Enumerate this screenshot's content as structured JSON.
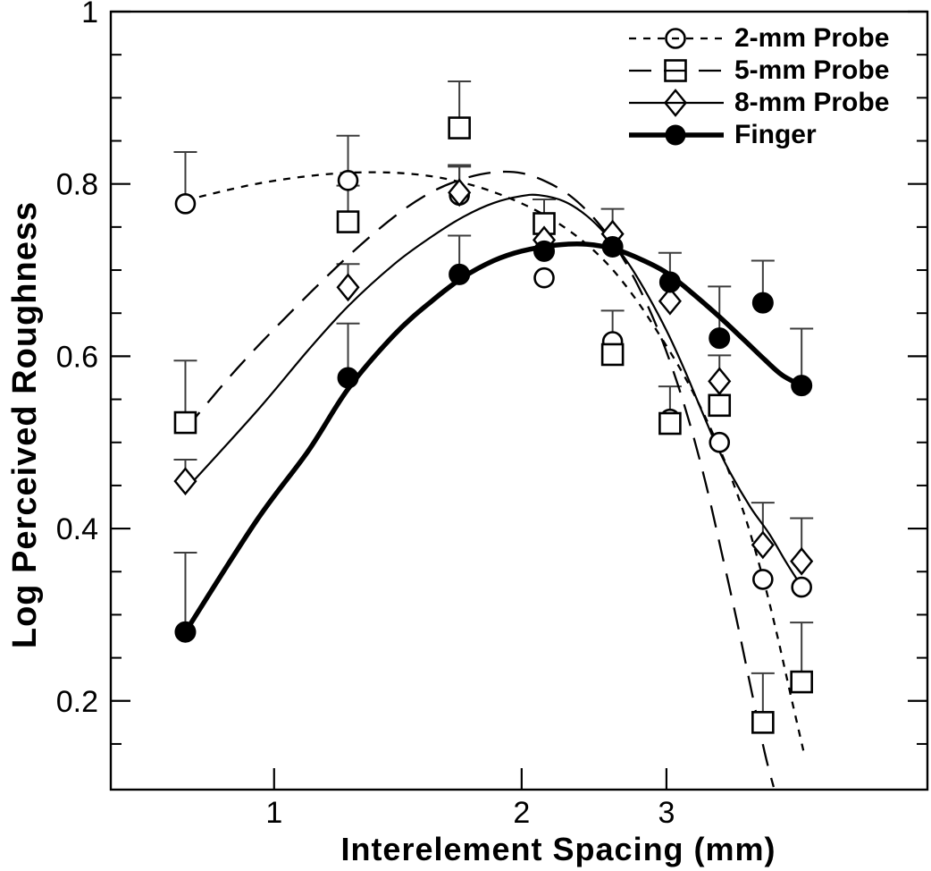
{
  "figure": {
    "kind": "scanned scientific line-scatter figure, black on white"
  },
  "legend": {
    "items": [
      {
        "label": "2-mm Probe"
      },
      {
        "label": "5-mm Probe"
      },
      {
        "label": "8-mm Probe"
      },
      {
        "label": "Finger"
      }
    ]
  },
  "colors": {
    "ink": "#000000",
    "error_bar": "#3d3d3d",
    "background": "#ffffff"
  },
  "chart_data": {
    "type": "scatter",
    "title": "",
    "xlabel": "Interelement Spacing (mm)",
    "ylabel": "Log Perceived Roughness",
    "x_scale": "log",
    "y_scale": "linear",
    "xlim": [
      0.633,
      6.23
    ],
    "ylim": [
      0.097,
      1.0
    ],
    "grid": false,
    "legend_position": "top-right-inside",
    "x_ticks": [
      1,
      2,
      3
    ],
    "x_tick_labels": [
      "1",
      "2",
      "3"
    ],
    "y_ticks": [
      1.0,
      0.8,
      0.6,
      0.4,
      0.2
    ],
    "y_tick_labels": [
      "1",
      "0.8",
      "0.6",
      "0.4",
      "0.2"
    ],
    "y_minor_ticks": [
      0.15,
      0.25,
      0.3,
      0.35,
      0.45,
      0.5,
      0.55,
      0.65,
      0.7,
      0.75,
      0.85,
      0.9,
      0.95
    ],
    "x": [
      0.78,
      1.23,
      1.68,
      2.13,
      2.58,
      3.03,
      3.48,
      3.93,
      4.38
    ],
    "series": [
      {
        "id": "2mm-probe",
        "name": "2-mm Probe",
        "marker": "open-circle",
        "line": "short-dash",
        "values": [
          0.777,
          0.804,
          0.787,
          0.691,
          0.617,
          0.527,
          0.5,
          0.341,
          0.332
        ],
        "err_top": [
          0.837,
          0.856,
          0.82,
          null,
          0.653,
          null,
          null,
          null,
          null
        ],
        "curve": [
          [
            0.78,
            0.781
          ],
          [
            0.95,
            0.8
          ],
          [
            1.15,
            0.811
          ],
          [
            1.35,
            0.8135
          ],
          [
            1.55,
            0.809
          ],
          [
            1.75,
            0.798
          ],
          [
            1.95,
            0.782
          ],
          [
            2.15,
            0.762
          ],
          [
            2.35,
            0.737
          ],
          [
            2.55,
            0.706
          ],
          [
            2.75,
            0.667
          ],
          [
            2.95,
            0.623
          ],
          [
            3.15,
            0.578
          ],
          [
            3.35,
            0.528
          ],
          [
            3.55,
            0.473
          ],
          [
            3.75,
            0.41
          ],
          [
            3.95,
            0.335
          ],
          [
            4.1,
            0.272
          ],
          [
            4.25,
            0.206
          ],
          [
            4.42,
            0.135
          ]
        ]
      },
      {
        "id": "5mm-probe",
        "name": "5-mm Probe",
        "marker": "open-square",
        "line": "long-dash",
        "values": [
          0.523,
          0.756,
          0.865,
          0.754,
          0.602,
          0.522,
          0.543,
          0.175,
          0.222
        ],
        "err_top": [
          0.595,
          0.798,
          0.919,
          0.782,
          null,
          0.565,
          null,
          0.232,
          0.291
        ],
        "curve": [
          [
            0.78,
            0.515
          ],
          [
            0.9,
            0.585
          ],
          [
            1.05,
            0.652
          ],
          [
            1.23,
            0.716
          ],
          [
            1.4,
            0.762
          ],
          [
            1.55,
            0.79
          ],
          [
            1.7,
            0.806
          ],
          [
            1.85,
            0.8135
          ],
          [
            2.0,
            0.8125
          ],
          [
            2.15,
            0.802
          ],
          [
            2.3,
            0.785
          ],
          [
            2.45,
            0.76
          ],
          [
            2.6,
            0.728
          ],
          [
            2.75,
            0.688
          ],
          [
            2.9,
            0.641
          ],
          [
            3.05,
            0.586
          ],
          [
            3.2,
            0.523
          ],
          [
            3.35,
            0.452
          ],
          [
            3.5,
            0.373
          ],
          [
            3.65,
            0.295
          ],
          [
            3.8,
            0.215
          ],
          [
            3.95,
            0.14
          ],
          [
            4.05,
            0.1
          ]
        ]
      },
      {
        "id": "8mm-probe",
        "name": "8-mm Probe",
        "marker": "open-diamond",
        "line": "solid-thin",
        "values": [
          0.455,
          0.68,
          0.79,
          0.735,
          0.742,
          0.664,
          0.571,
          0.381,
          0.362
        ],
        "err_top": [
          0.48,
          0.707,
          0.822,
          null,
          0.771,
          null,
          0.601,
          0.43,
          0.412
        ],
        "curve": [
          [
            0.78,
            0.445
          ],
          [
            0.95,
            0.535
          ],
          [
            1.1,
            0.607
          ],
          [
            1.23,
            0.658
          ],
          [
            1.4,
            0.707
          ],
          [
            1.55,
            0.738
          ],
          [
            1.7,
            0.762
          ],
          [
            1.85,
            0.778
          ],
          [
            2.0,
            0.786
          ],
          [
            2.1,
            0.787
          ],
          [
            2.25,
            0.78
          ],
          [
            2.4,
            0.763
          ],
          [
            2.55,
            0.738
          ],
          [
            2.7,
            0.707
          ],
          [
            2.85,
            0.67
          ],
          [
            3.0,
            0.63
          ],
          [
            3.15,
            0.586
          ],
          [
            3.3,
            0.54
          ],
          [
            3.45,
            0.497
          ],
          [
            3.6,
            0.462
          ],
          [
            3.8,
            0.424
          ],
          [
            4.0,
            0.394
          ],
          [
            4.2,
            0.36
          ],
          [
            4.4,
            0.33
          ]
        ]
      },
      {
        "id": "finger",
        "name": "Finger",
        "marker": "filled-circle",
        "line": "solid-thick",
        "values": [
          0.28,
          0.575,
          0.695,
          0.722,
          0.727,
          0.686,
          0.621,
          0.662,
          0.566
        ],
        "err_top": [
          0.372,
          0.638,
          0.74,
          null,
          null,
          0.72,
          0.681,
          0.711,
          0.632
        ],
        "curve": [
          [
            0.78,
            0.28
          ],
          [
            0.95,
            0.408
          ],
          [
            1.1,
            0.49
          ],
          [
            1.23,
            0.562
          ],
          [
            1.4,
            0.625
          ],
          [
            1.55,
            0.663
          ],
          [
            1.7,
            0.692
          ],
          [
            1.85,
            0.711
          ],
          [
            2.0,
            0.722
          ],
          [
            2.2,
            0.729
          ],
          [
            2.4,
            0.73
          ],
          [
            2.6,
            0.724
          ],
          [
            2.8,
            0.712
          ],
          [
            3.0,
            0.697
          ],
          [
            3.2,
            0.676
          ],
          [
            3.45,
            0.649
          ],
          [
            3.7,
            0.622
          ],
          [
            3.95,
            0.596
          ],
          [
            4.15,
            0.578
          ],
          [
            4.38,
            0.566
          ]
        ]
      }
    ]
  }
}
